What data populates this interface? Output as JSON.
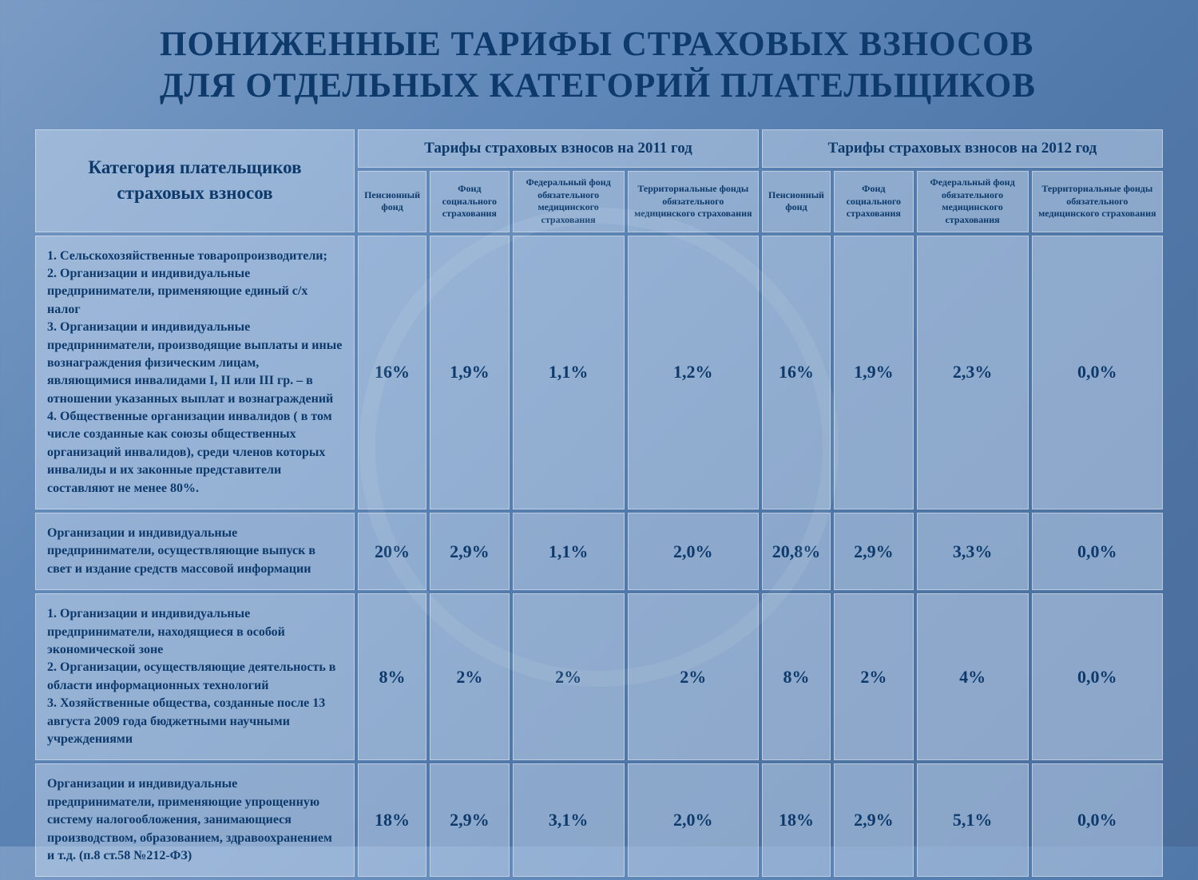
{
  "title_line1": "ПОНИЖЕННЫЕ ТАРИФЫ СТРАХОВЫХ ВЗНОСОВ",
  "title_line2": "ДЛЯ ОТДЕЛЬНЫХ КАТЕГОРИЙ ПЛАТЕЛЬЩИКОВ",
  "colors": {
    "text": "#0d3a6b",
    "bg_gradient_from": "#7a9bc4",
    "bg_gradient_to": "#4a6d9c",
    "cell_bg": "rgba(200,218,240,0.5)"
  },
  "table": {
    "type": "table",
    "header": {
      "category_line1": "Категория плательщиков",
      "category_line2": "страховых взносов",
      "year2011": "Тарифы страховых взносов на 2011 год",
      "year2012": "Тарифы страховых взносов на 2012 год",
      "sub": {
        "pension": "Пенсионный фонд",
        "social": "Фонд социального страхования",
        "federal_med": "Федеральный фонд обязательного медицинского страхования",
        "territorial_med": "Территориальные фонды обязательного медицинского страхования"
      }
    },
    "rows": [
      {
        "category": "1. Сельскохозяйственные товаропроизводители;\n2. Организации и индивидуальные предприниматели, применяющие единый с/х налог\n3. Организации и индивидуальные предприниматели,  производящие выплаты и иные вознаграждения физическим лицам, являющимися инвалидами I, II или III  гр. – в отношении указанных выплат и вознаграждений\n4. Общественные организации инвалидов ( в том числе созданные как союзы общественных организаций инвалидов), среди членов которых инвалиды и их законные представители составляют не менее 80%.",
        "v": [
          "16%",
          "1,9%",
          "1,1%",
          "1,2%",
          "16%",
          "1,9%",
          "2,3%",
          "0,0%"
        ]
      },
      {
        "category": "Организации и индивидуальные предприниматели, осуществляющие выпуск в свет и издание средств массовой информации",
        "v": [
          "20%",
          "2,9%",
          "1,1%",
          "2,0%",
          "20,8%",
          "2,9%",
          "3,3%",
          "0,0%"
        ]
      },
      {
        "category": "1. Организации и индивидуальные предприниматели, находящиеся в особой экономической зоне\n2. Организации, осуществляющие деятельность в области информационных технологий\n3. Хозяйственные общества, созданные после 13 августа 2009 года бюджетными научными учреждениями",
        "v": [
          "8%",
          "2%",
          "2%",
          "2%",
          "8%",
          "2%",
          "4%",
          "0,0%"
        ]
      },
      {
        "category": "Организации и индивидуальные предприниматели, применяющие упрощенную систему налогообложения, занимающиеся производством, образованием, здравоохранением и т.д. (п.8 ст.58  №212-ФЗ)",
        "v": [
          "18%",
          "2,9%",
          "3,1%",
          "2,0%",
          "18%",
          "2,9%",
          "5,1%",
          "0,0%"
        ]
      }
    ]
  }
}
